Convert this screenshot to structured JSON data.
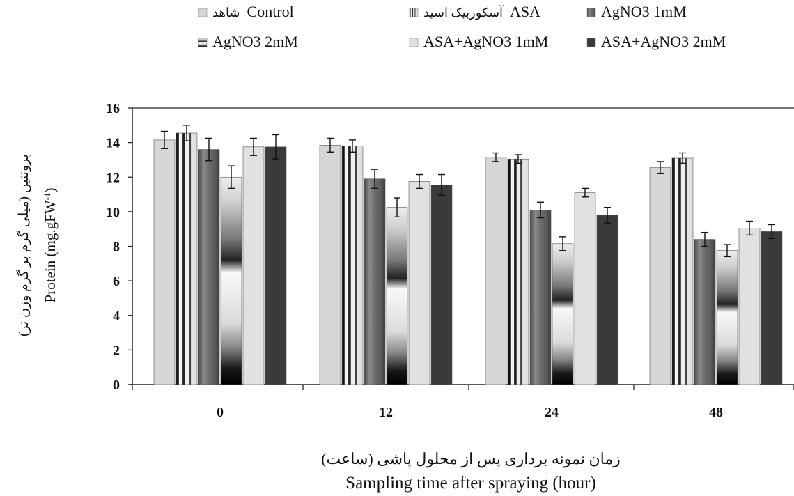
{
  "chart_data": {
    "type": "bar",
    "categories": [
      "0",
      "12",
      "24",
      "48"
    ],
    "xlabel_fa": "زمان نمونه برداری پس از محلول پاشی (ساعت)",
    "xlabel_en": "Sampling time after spraying (hour)",
    "ylabel_fa": "پروتئین (میلی گرم بر گرم وزن تر)",
    "ylabel_en_base": "Protein (mg.gFW",
    "ylabel_en_sup": "-1",
    "ylabel_en_close": ")",
    "ylim": [
      0,
      16
    ],
    "yticks": [
      0,
      2,
      4,
      6,
      8,
      10,
      12,
      14,
      16
    ],
    "grid": false,
    "legend_position": "top",
    "series": [
      {
        "name": "Control",
        "name_fa": "شاهد",
        "pattern": "light",
        "values": [
          14.15,
          13.85,
          13.15,
          12.55
        ],
        "errors": [
          0.5,
          0.4,
          0.25,
          0.35
        ]
      },
      {
        "name": "ASA",
        "name_fa": "آسکوربیک اسید",
        "pattern": "striped",
        "values": [
          14.55,
          13.8,
          13.05,
          13.1
        ],
        "errors": [
          0.45,
          0.35,
          0.25,
          0.3
        ]
      },
      {
        "name": "AgNO3 1mM",
        "pattern": "dark-gradient",
        "values": [
          13.6,
          11.9,
          10.1,
          8.4
        ],
        "errors": [
          0.65,
          0.55,
          0.45,
          0.4
        ]
      },
      {
        "name": "AgNO3 2mM",
        "pattern": "banded-gradient",
        "values": [
          12.0,
          10.25,
          8.15,
          7.75
        ],
        "errors": [
          0.65,
          0.55,
          0.4,
          0.35
        ]
      },
      {
        "name": "ASA+AgNO3 1mM",
        "pattern": "pale",
        "values": [
          13.75,
          11.75,
          11.1,
          9.05
        ],
        "errors": [
          0.5,
          0.4,
          0.25,
          0.4
        ]
      },
      {
        "name": "ASA+AgNO3 2mM",
        "pattern": "dark",
        "values": [
          13.75,
          11.55,
          9.8,
          8.85
        ],
        "errors": [
          0.7,
          0.6,
          0.45,
          0.4
        ]
      }
    ]
  },
  "colors": {
    "light": "#d6d6d6",
    "pale": "#e1e1e1",
    "dark": "#3a3a3a",
    "axis": "#222222"
  }
}
